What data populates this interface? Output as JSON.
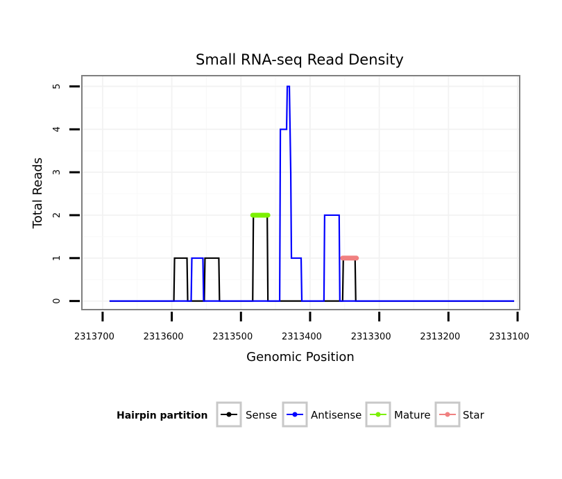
{
  "chart_data": {
    "type": "line",
    "title": "Small RNA-seq Read Density",
    "xlabel": "Genomic Position",
    "ylabel": "Total Reads",
    "x_reversed": true,
    "xlim": [
      2313730,
      2313097
    ],
    "ylim": [
      -0.2,
      5.25
    ],
    "x_ticks": [
      2313700,
      2313600,
      2313500,
      2313400,
      2313300,
      2313200,
      2313100
    ],
    "x_tick_labels": [
      "2313700",
      "2313600",
      "2313500",
      "2313400",
      "2313300",
      "2313200",
      "2313100"
    ],
    "y_ticks": [
      0,
      1,
      2,
      3,
      4,
      5
    ],
    "y_tick_labels": [
      "0",
      "1",
      "2",
      "3",
      "4",
      "5"
    ],
    "grid": true,
    "legend": {
      "title": "Hairpin partition",
      "position": "bottom",
      "entries": [
        "Sense",
        "Antisense",
        "Mature",
        "Star"
      ]
    },
    "series": [
      {
        "name": "Sense",
        "color": "#000000",
        "points": [
          [
            2313690,
            0
          ],
          [
            2313597,
            0
          ],
          [
            2313596,
            1
          ],
          [
            2313578,
            1
          ],
          [
            2313577,
            0
          ],
          [
            2313553,
            0
          ],
          [
            2313552,
            1
          ],
          [
            2313532,
            1
          ],
          [
            2313531,
            0
          ],
          [
            2313483,
            0
          ],
          [
            2313482,
            2
          ],
          [
            2313462,
            2
          ],
          [
            2313461,
            0
          ],
          [
            2313353,
            0
          ],
          [
            2313352,
            1
          ],
          [
            2313335,
            1
          ],
          [
            2313334,
            0
          ],
          [
            2313105,
            0
          ]
        ]
      },
      {
        "name": "Antisense",
        "color": "#0000ff",
        "points": [
          [
            2313690,
            0
          ],
          [
            2313572,
            0
          ],
          [
            2313571,
            1
          ],
          [
            2313555,
            1
          ],
          [
            2313554,
            0
          ],
          [
            2313444,
            0
          ],
          [
            2313443,
            4
          ],
          [
            2313434,
            4
          ],
          [
            2313433,
            5
          ],
          [
            2313430,
            5
          ],
          [
            2313428,
            3
          ],
          [
            2313427,
            1
          ],
          [
            2313413,
            1
          ],
          [
            2313412,
            0
          ],
          [
            2313380,
            0
          ],
          [
            2313379,
            2
          ],
          [
            2313358,
            2
          ],
          [
            2313357,
            0
          ],
          [
            2313105,
            0
          ]
        ]
      },
      {
        "name": "Mature",
        "color": "#7cf000",
        "points": [
          [
            2313483,
            2
          ],
          [
            2313461,
            2
          ]
        ]
      },
      {
        "name": "Star",
        "color": "#f08080",
        "points": [
          [
            2313353,
            1
          ],
          [
            2313333,
            1
          ]
        ]
      }
    ]
  }
}
